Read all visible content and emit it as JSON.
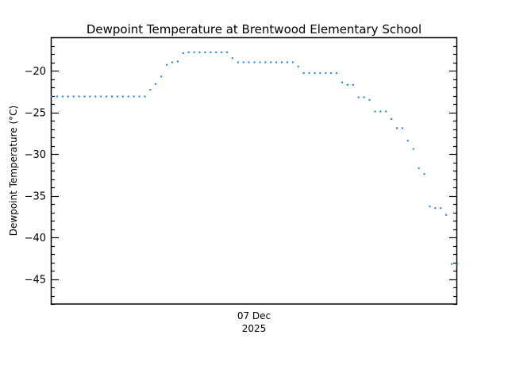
{
  "chart_data": {
    "type": "scatter",
    "title": "Dewpoint Temperature at Brentwood Elementary School",
    "ylabel": "Dewpoint Temperature (°C)",
    "xlabel": "",
    "x_tick_label": {
      "day": "07 Dec",
      "year": "2025"
    },
    "x_tick_index": 37,
    "xlim": [
      -0.15,
      74
    ],
    "ylim": [
      -48,
      -16
    ],
    "y_major_ticks": [
      -20,
      -25,
      -30,
      -35,
      -40,
      -45
    ],
    "y_tick_labels": [
      "−20",
      "−25",
      "−30",
      "−35",
      "−40",
      "−45"
    ],
    "y_minor_step": 1,
    "grid": false,
    "point_color": "#0a7dff",
    "series": [
      {
        "name": "Dewpoint",
        "values": [
          -23.1,
          -23.1,
          -23.1,
          -23.1,
          -23.1,
          -23.1,
          -23.1,
          -23.1,
          -23.1,
          -23.1,
          -23.1,
          -23.1,
          -23.1,
          -23.1,
          -23.1,
          -23.1,
          -23.1,
          -23.1,
          -22.3,
          -21.6,
          -20.7,
          -19.3,
          -19.0,
          -18.9,
          -17.9,
          -17.8,
          -17.8,
          -17.8,
          -17.8,
          -17.8,
          -17.8,
          -17.8,
          -17.8,
          -18.5,
          -19.0,
          -19.0,
          -19.0,
          -19.0,
          -19.0,
          -19.0,
          -19.0,
          -19.0,
          -19.0,
          -19.0,
          -19.0,
          -19.5,
          -20.3,
          -20.3,
          -20.3,
          -20.3,
          -20.3,
          -20.3,
          -20.3,
          -21.4,
          -21.7,
          -21.7,
          -23.2,
          -23.2,
          -23.5,
          -24.9,
          -24.9,
          -24.9,
          -25.8,
          -26.9,
          -26.9,
          -28.4,
          -29.4,
          -31.7,
          -32.4,
          -36.3,
          -36.5,
          -36.5,
          -37.3,
          -43.2,
          -43.2
        ]
      }
    ]
  }
}
